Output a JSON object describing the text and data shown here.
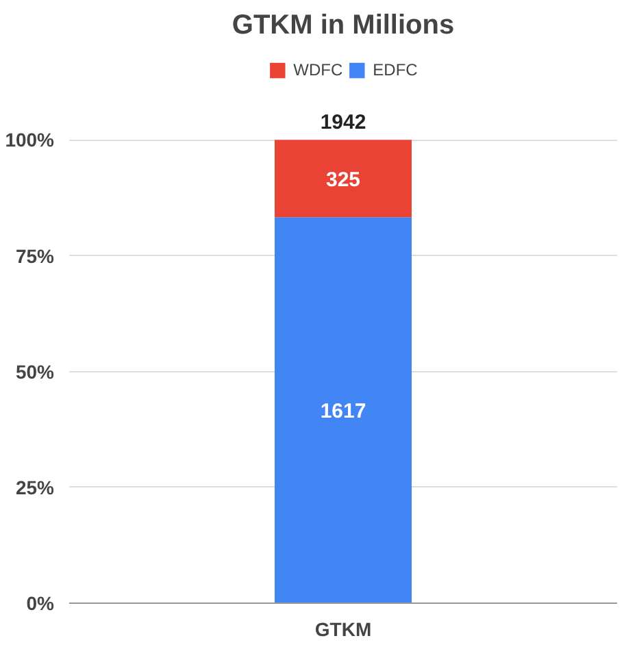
{
  "chart_data": {
    "type": "bar",
    "title": "GTKM in Millions",
    "categories": [
      "GTKM"
    ],
    "stacked": true,
    "series": [
      {
        "name": "EDFC",
        "color": "#4285f4",
        "values": [
          83.3
        ]
      },
      {
        "name": "WDFC",
        "color": "#ea4335",
        "values": [
          16.7
        ]
      }
    ],
    "annotations": [
      "1617",
      "325",
      {
        "text": "1942",
        "x": "GTKM",
        "y": 100
      }
    ],
    "ylim": [
      0,
      100
    ],
    "yticks": [
      {
        "value": 0,
        "label": "0%"
      },
      {
        "value": 25,
        "label": "25%"
      },
      {
        "value": 50,
        "label": "50%"
      },
      {
        "value": 75,
        "label": "75%"
      },
      {
        "value": 100,
        "label": "100%"
      }
    ],
    "grid": "y",
    "legend": "top"
  }
}
